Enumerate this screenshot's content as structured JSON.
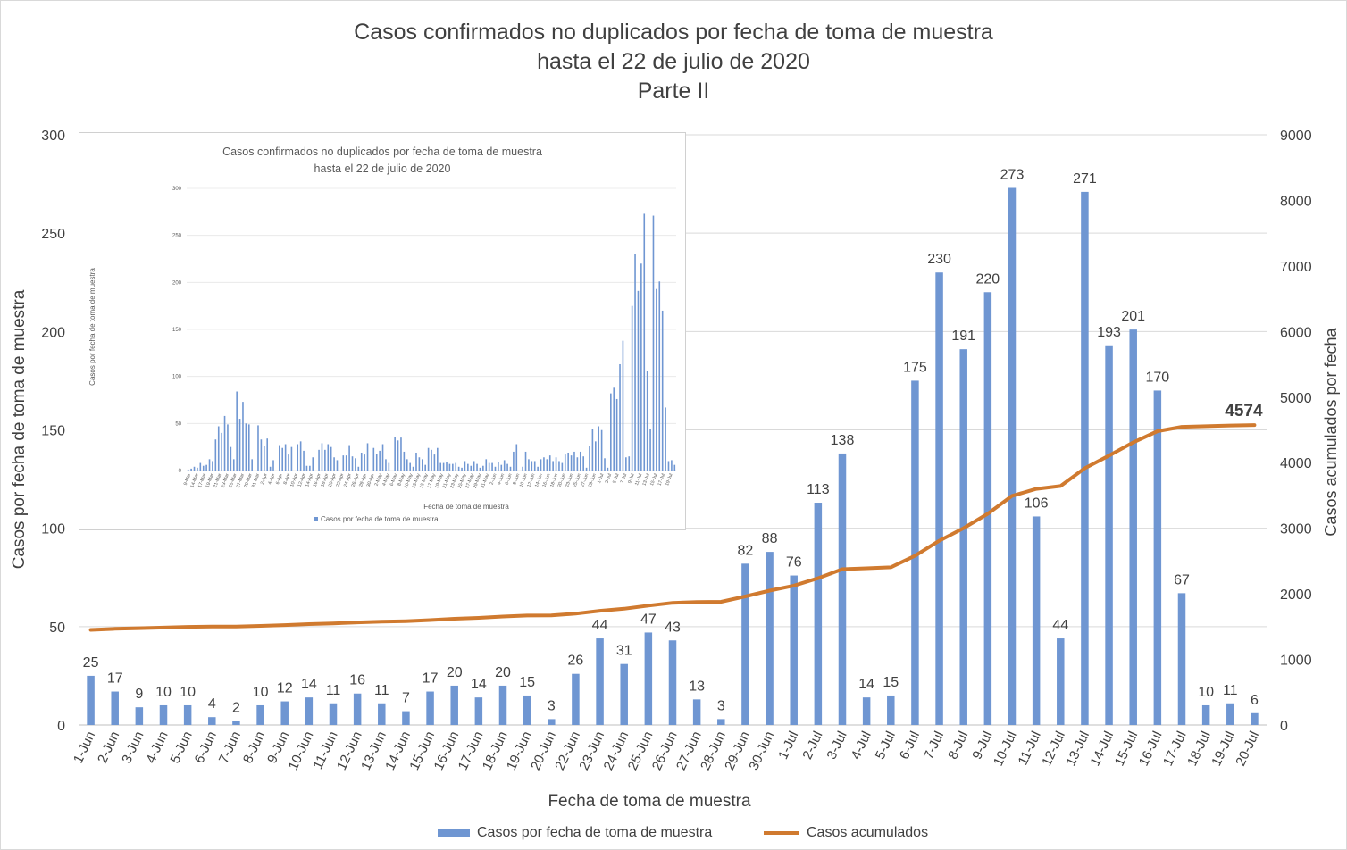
{
  "title": {
    "line1": "Casos confirmados no duplicados por fecha de toma de muestra",
    "line2": "hasta el 22 de julio de 2020",
    "line3": "Parte II"
  },
  "colors": {
    "bars": "#6f96d2",
    "line": "#d07a2f",
    "grid": "#d9d9d9",
    "text": "#404040"
  },
  "chart_data": {
    "type": "bar",
    "title": "Casos confirmados no duplicados por fecha de toma de muestra hasta el 22 de julio de 2020 Parte II",
    "xlabel": "Fecha de toma de muestra",
    "ylabel": "Casos por fecha de toma de muestra",
    "y2label": "Casos acumulados por fecha",
    "ylim": [
      0,
      300
    ],
    "y2lim": [
      0,
      9000
    ],
    "yticks": [
      0,
      50,
      100,
      150,
      200,
      250,
      300
    ],
    "y2ticks": [
      0,
      1000,
      2000,
      3000,
      4000,
      5000,
      6000,
      7000,
      8000,
      9000
    ],
    "grid": true,
    "legend": "bottom",
    "categories": [
      "1-Jun",
      "2-Jun",
      "3-Jun",
      "4-Jun",
      "5-Jun",
      "6-Jun",
      "7-Jun",
      "8-Jun",
      "9-Jun",
      "10-Jun",
      "11-Jun",
      "12-Jun",
      "13-Jun",
      "14-Jun",
      "15-Jun",
      "16-Jun",
      "17-Jun",
      "18-Jun",
      "19-Jun",
      "20-Jun",
      "22-Jun",
      "23-Jun",
      "24-Jun",
      "25-Jun",
      "26-Jun",
      "27-Jun",
      "28-Jun",
      "29-Jun",
      "30-Jun",
      "1-Jul",
      "2-Jul",
      "3-Jul",
      "4-Jul",
      "5-Jul",
      "6-Jul",
      "7-Jul",
      "8-Jul",
      "9-Jul",
      "10-Jul",
      "11-Jul",
      "12-Jul",
      "13-Jul",
      "14-Jul",
      "15-Jul",
      "16-Jul",
      "17-Jul",
      "18-Jul",
      "19-Jul",
      "20-Jul"
    ],
    "series": [
      {
        "name": "Casos por fecha de toma de muestra",
        "type": "bar",
        "axis": "left",
        "values": [
          25,
          17,
          9,
          10,
          10,
          4,
          2,
          10,
          12,
          14,
          11,
          16,
          11,
          7,
          17,
          20,
          14,
          20,
          15,
          3,
          26,
          44,
          31,
          47,
          43,
          13,
          3,
          82,
          88,
          76,
          113,
          138,
          14,
          15,
          175,
          230,
          191,
          220,
          273,
          106,
          44,
          271,
          193,
          201,
          170,
          67,
          10,
          11,
          6
        ]
      },
      {
        "name": "Casos acumulados",
        "type": "line",
        "axis": "right",
        "values": [
          1450,
          1467,
          1476,
          1486,
          1496,
          1500,
          1502,
          1512,
          1524,
          1538,
          1549,
          1565,
          1576,
          1583,
          1600,
          1620,
          1634,
          1654,
          1669,
          1672,
          1698,
          1742,
          1773,
          1820,
          1863,
          1876,
          1879,
          1961,
          2049,
          2125,
          2238,
          2376,
          2390,
          2405,
          2580,
          2810,
          3001,
          3221,
          3494,
          3600,
          3644,
          3915,
          4108,
          4309,
          4479,
          4546,
          4556,
          4567,
          4574
        ]
      }
    ],
    "annotations": [
      {
        "text": "4574"
      }
    ]
  },
  "inset": {
    "title_line1": "Casos confirmados no duplicados por fecha de toma de muestra",
    "title_line2": "hasta el 22 de julio de 2020",
    "ylabel": "Casos por fecha de toma de muestra",
    "xlabel": "Fecha de toma de muestra",
    "legend": "Casos por fecha de toma de muestra",
    "yticks": [
      0,
      50,
      100,
      150,
      200,
      250,
      300
    ],
    "ylim": [
      0,
      300
    ],
    "categories": [
      "9-Mar",
      "14-Mar",
      "17-Mar",
      "19-Mar",
      "21-Mar",
      "23-Mar",
      "25-Mar",
      "27-Mar",
      "29-Mar",
      "31-Mar",
      "2-Apr",
      "4-Apr",
      "6-Apr",
      "8-Apr",
      "10-Apr",
      "12-Apr",
      "14-Apr",
      "16-Apr",
      "18-Apr",
      "20-Apr",
      "22-Apr",
      "24-Apr",
      "26-Apr",
      "28-Apr",
      "30-Apr",
      "2-May",
      "4-May",
      "6-May",
      "8-May",
      "10-May",
      "13-May",
      "15-May",
      "17-May",
      "19-May",
      "21-May",
      "23-May",
      "25-May",
      "27-May",
      "29-May",
      "31-May",
      "2-Jun",
      "4-Jun",
      "6-Jun",
      "8-Jun",
      "10-Jun",
      "12-Jun",
      "14-Jun",
      "16-Jun",
      "18-Jun",
      "20-Jun",
      "23-Jun",
      "25-Jun",
      "27-Jun",
      "29-Jun",
      "1-Jul",
      "3-Jul",
      "5-Jul",
      "7-Jul",
      "9-Jul",
      "11-Jul",
      "13-Jul",
      "15-Jul",
      "17-Jul",
      "19-Jul"
    ],
    "values": [
      1,
      2,
      4,
      3,
      8,
      5,
      6,
      12,
      10,
      33,
      47,
      40,
      58,
      49,
      25,
      12,
      84,
      55,
      73,
      50,
      49,
      12,
      0,
      48,
      33,
      26,
      34,
      4,
      11,
      0,
      27,
      24,
      28,
      17,
      25,
      0,
      28,
      31,
      21,
      5,
      5,
      14,
      0,
      22,
      29,
      22,
      28,
      25,
      14,
      11,
      0,
      16,
      16,
      27,
      15,
      13,
      4,
      19,
      17,
      29,
      0,
      24,
      18,
      21,
      28,
      12,
      8,
      0,
      36,
      32,
      35,
      20,
      12,
      8,
      4,
      19,
      14,
      12,
      6,
      24,
      22,
      17,
      24,
      8,
      8,
      9,
      7,
      7,
      8,
      4,
      3,
      10,
      7,
      5,
      10,
      7,
      3,
      5,
      12,
      8,
      8,
      4,
      9,
      6,
      11,
      7,
      4,
      20,
      28,
      0,
      4,
      20,
      12,
      10,
      10,
      4,
      12,
      14,
      12,
      16,
      10,
      14,
      10,
      8,
      17,
      19,
      16,
      20,
      14,
      20,
      15,
      3,
      26,
      44,
      31,
      47,
      43,
      13,
      3,
      82,
      88,
      76,
      113,
      138,
      14,
      15,
      175,
      230,
      191,
      220,
      273,
      106,
      44,
      271,
      193,
      201,
      170,
      67,
      10,
      11,
      6
    ]
  },
  "legend": {
    "bars_label": "Casos por fecha de toma de muestra",
    "line_label": "Casos acumulados"
  }
}
